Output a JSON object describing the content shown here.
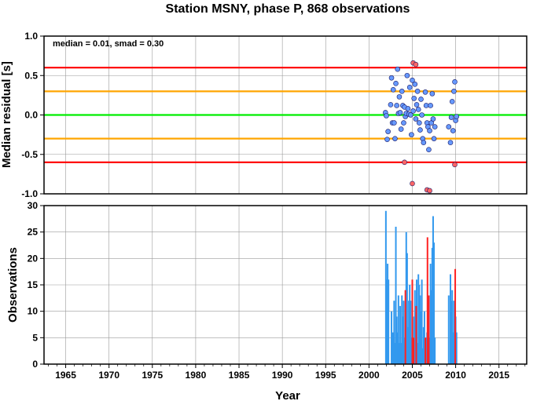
{
  "chart_data": [
    {
      "type": "scatter",
      "title": "Station MSNY, phase P, 868 observations",
      "ylabel": "Median residual [s]",
      "annotation": "median = 0.01, smad = 0.30",
      "xlim": [
        1962.5,
        2018.2
      ],
      "ylim": [
        -1.0,
        1.0
      ],
      "yticks": [
        "1.0",
        "0.5",
        "0.0",
        "-0.5",
        "-1.0"
      ],
      "ytick_values": [
        1.0,
        0.5,
        0.0,
        -0.5,
        -1.0
      ],
      "grid": true,
      "reference_lines": [
        {
          "y": 0.6,
          "color": "#ff0000"
        },
        {
          "y": 0.3,
          "color": "#ffa500"
        },
        {
          "y": 0.0,
          "color": "#00ee00"
        },
        {
          "y": -0.3,
          "color": "#ffa500"
        },
        {
          "y": -0.6,
          "color": "#ff0000"
        }
      ],
      "series": [
        {
          "color": "#6699ff",
          "points": [
            [
              2001.9,
              0.03
            ],
            [
              2002.0,
              -0.01
            ],
            [
              2002.1,
              -0.31
            ],
            [
              2002.2,
              -0.21
            ],
            [
              2002.5,
              0.13
            ],
            [
              2002.6,
              0.47
            ],
            [
              2002.7,
              -0.1
            ],
            [
              2002.8,
              0.32
            ],
            [
              2002.9,
              -0.1
            ],
            [
              2003.0,
              -0.3
            ],
            [
              2003.1,
              0.4
            ],
            [
              2003.2,
              0.12
            ],
            [
              2003.3,
              0.58
            ],
            [
              2003.4,
              0.02
            ],
            [
              2003.5,
              0.23
            ],
            [
              2003.6,
              0.03
            ],
            [
              2003.7,
              -0.18
            ],
            [
              2003.8,
              0.3
            ],
            [
              2003.9,
              0.12
            ],
            [
              2004.0,
              -0.1
            ],
            [
              2004.1,
              0.1
            ],
            [
              2004.2,
              -0.02
            ],
            [
              2004.3,
              0.02
            ],
            [
              2004.4,
              0.5
            ],
            [
              2004.5,
              0.08
            ],
            [
              2004.6,
              0.01
            ],
            [
              2004.7,
              0.35
            ],
            [
              2004.8,
              0.0
            ],
            [
              2004.9,
              -0.25
            ],
            [
              2005.0,
              0.44
            ],
            [
              2005.1,
              0.05
            ],
            [
              2005.2,
              0.21
            ],
            [
              2005.3,
              0.39
            ],
            [
              2005.4,
              -0.05
            ],
            [
              2005.5,
              0.13
            ],
            [
              2005.6,
              0.3
            ],
            [
              2005.7,
              0.07
            ],
            [
              2005.8,
              -0.1
            ],
            [
              2005.9,
              -0.19
            ],
            [
              2006.0,
              0.2
            ],
            [
              2006.1,
              0.0
            ],
            [
              2006.2,
              -0.3
            ],
            [
              2006.3,
              -0.35
            ],
            [
              2006.5,
              0.29
            ],
            [
              2006.6,
              0.12
            ],
            [
              2006.7,
              -0.1
            ],
            [
              2006.8,
              -0.15
            ],
            [
              2006.9,
              -0.44
            ],
            [
              2007.0,
              -0.2
            ],
            [
              2007.1,
              0.12
            ],
            [
              2007.2,
              -0.1
            ],
            [
              2007.3,
              0.27
            ],
            [
              2007.4,
              -0.05
            ],
            [
              2007.5,
              -0.3
            ],
            [
              2007.6,
              -0.15
            ],
            [
              2009.2,
              -0.15
            ],
            [
              2009.4,
              -0.35
            ],
            [
              2009.5,
              -0.03
            ],
            [
              2009.6,
              0.17
            ],
            [
              2009.7,
              -0.2
            ],
            [
              2009.8,
              0.3
            ],
            [
              2009.9,
              0.42
            ],
            [
              2010.0,
              -0.07
            ],
            [
              2010.1,
              -0.02
            ]
          ]
        },
        {
          "color": "#ff6666",
          "points": [
            [
              2004.1,
              -0.6
            ],
            [
              2005.0,
              -0.87
            ],
            [
              2005.1,
              0.66
            ],
            [
              2005.4,
              0.64
            ],
            [
              2006.7,
              -0.95
            ],
            [
              2007.0,
              -0.96
            ],
            [
              2009.9,
              -0.63
            ]
          ]
        }
      ]
    },
    {
      "type": "bar",
      "xlabel": "Year",
      "ylabel": "Observations",
      "xlim": [
        1962.5,
        2018.2
      ],
      "ylim": [
        0,
        30
      ],
      "xticks": [
        "1965",
        "1970",
        "1975",
        "1980",
        "1985",
        "1990",
        "1995",
        "2000",
        "2005",
        "2010",
        "2015"
      ],
      "xtick_values": [
        1965,
        1970,
        1975,
        1980,
        1985,
        1990,
        1995,
        2000,
        2005,
        2010,
        2015
      ],
      "yticks": [
        "30",
        "25",
        "20",
        "15",
        "10",
        "5",
        "0"
      ],
      "ytick_values": [
        30,
        25,
        20,
        15,
        10,
        5,
        0
      ],
      "grid": true,
      "series": [
        {
          "color": "#3399ee",
          "bars": [
            [
              2001.95,
              29
            ],
            [
              2002.05,
              16
            ],
            [
              2002.15,
              19
            ],
            [
              2002.25,
              16
            ],
            [
              2002.6,
              10
            ],
            [
              2002.75,
              6
            ],
            [
              2002.9,
              12
            ],
            [
              2003.0,
              4
            ],
            [
              2003.1,
              26
            ],
            [
              2003.2,
              9
            ],
            [
              2003.3,
              6
            ],
            [
              2003.4,
              13
            ],
            [
              2003.5,
              4
            ],
            [
              2003.6,
              11
            ],
            [
              2003.7,
              4
            ],
            [
              2003.8,
              13
            ],
            [
              2003.9,
              9
            ],
            [
              2004.0,
              12
            ],
            [
              2004.1,
              5
            ],
            [
              2004.2,
              3
            ],
            [
              2004.3,
              25
            ],
            [
              2004.4,
              21
            ],
            [
              2004.5,
              7
            ],
            [
              2004.6,
              12
            ],
            [
              2004.7,
              15
            ],
            [
              2004.8,
              12
            ],
            [
              2004.9,
              5
            ],
            [
              2005.0,
              12
            ],
            [
              2005.2,
              9
            ],
            [
              2005.3,
              14
            ],
            [
              2005.4,
              10
            ],
            [
              2005.5,
              16
            ],
            [
              2005.6,
              4
            ],
            [
              2005.7,
              17
            ],
            [
              2005.8,
              15
            ],
            [
              2005.9,
              13
            ],
            [
              2006.0,
              10
            ],
            [
              2006.1,
              16
            ],
            [
              2006.2,
              3
            ],
            [
              2006.3,
              7
            ],
            [
              2006.4,
              10
            ],
            [
              2006.6,
              5
            ],
            [
              2006.7,
              6
            ],
            [
              2006.8,
              10
            ],
            [
              2007.0,
              5
            ],
            [
              2007.1,
              19
            ],
            [
              2007.2,
              14
            ],
            [
              2007.3,
              22
            ],
            [
              2007.4,
              28
            ],
            [
              2007.5,
              23
            ],
            [
              2007.6,
              5
            ],
            [
              2009.2,
              13
            ],
            [
              2009.4,
              17
            ],
            [
              2009.5,
              12
            ],
            [
              2009.6,
              14
            ],
            [
              2009.7,
              6
            ],
            [
              2009.8,
              12
            ],
            [
              2009.9,
              10
            ],
            [
              2010.0,
              9
            ],
            [
              2010.1,
              6
            ]
          ]
        },
        {
          "color": "#ff2222",
          "bars": [
            [
              2004.2,
              14
            ],
            [
              2005.0,
              16
            ],
            [
              2005.15,
              5
            ],
            [
              2005.45,
              11
            ],
            [
              2006.5,
              5
            ],
            [
              2006.75,
              24
            ],
            [
              2006.9,
              13
            ],
            [
              2009.95,
              18
            ]
          ]
        }
      ]
    }
  ]
}
